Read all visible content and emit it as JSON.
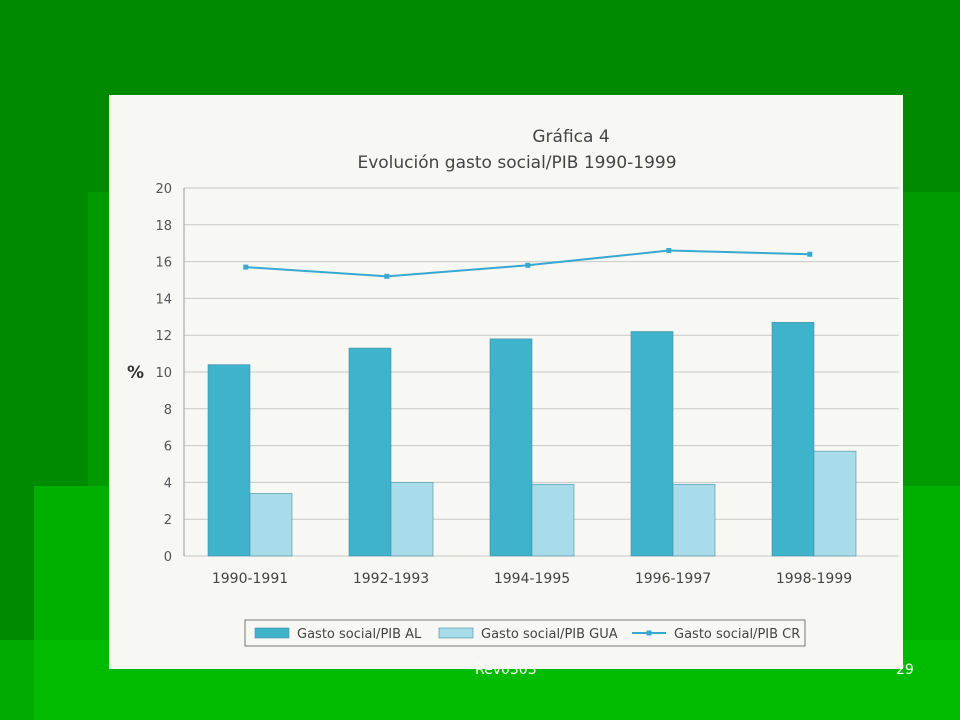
{
  "slide": {
    "footer_text": "Rev0303",
    "page_number": "29",
    "background_color": "#008a00"
  },
  "chart_data": {
    "type": "bar",
    "title": "Gráfica 4",
    "subtitle": "Evolución gasto social/PIB 1990-1999",
    "ylabel": "%",
    "xlabel": "",
    "ylim": [
      0,
      20
    ],
    "yticks": [
      "0",
      "2",
      "4",
      "6",
      "8",
      "10",
      "12",
      "14",
      "16",
      "18",
      "20"
    ],
    "categories": [
      "1990-1991",
      "1992-1993",
      "1994-1995",
      "1996-1997",
      "1998-1999"
    ],
    "grid": true,
    "legend_position": "bottom",
    "series": [
      {
        "name": "Gasto social/PIB AL",
        "type": "bar",
        "color": "#3fb3cc",
        "values": [
          10.4,
          11.3,
          11.8,
          12.2,
          12.7
        ]
      },
      {
        "name": "Gasto social/PIB GUA",
        "type": "bar",
        "color": "#a9dcea",
        "values": [
          3.4,
          4.0,
          3.9,
          3.9,
          5.7
        ]
      },
      {
        "name": "Gasto social/PIB CR",
        "type": "line",
        "color": "#38a8d0",
        "values": [
          15.7,
          15.2,
          15.8,
          16.6,
          16.4
        ]
      }
    ]
  }
}
